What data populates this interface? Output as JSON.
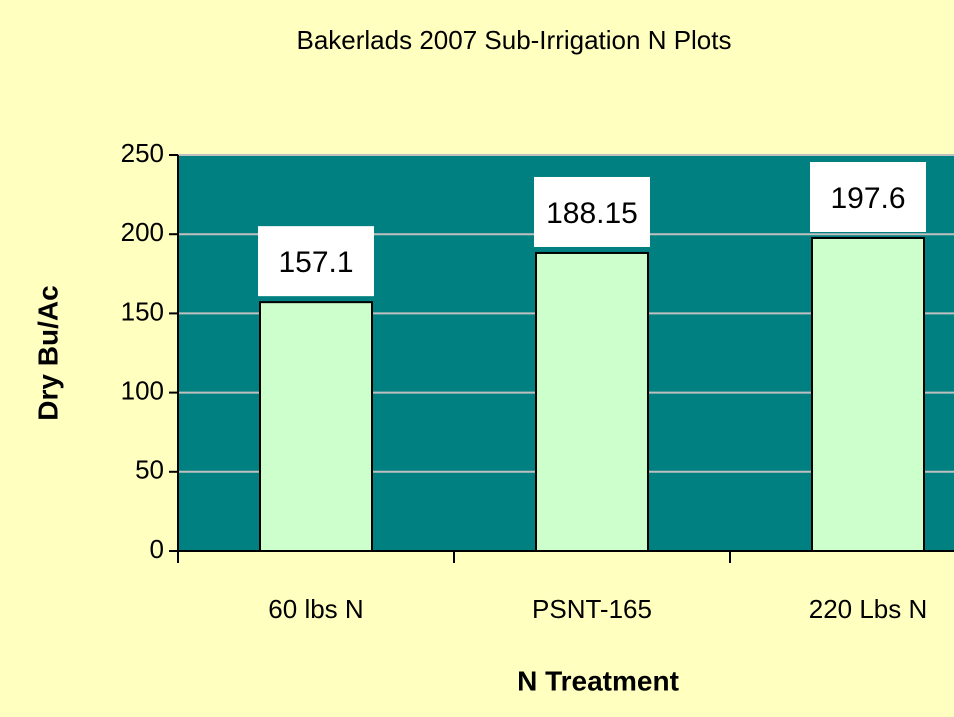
{
  "chart_data": {
    "type": "bar",
    "title": "Bakerlads 2007 Sub-Irrigation N Plots",
    "x_label": "N Treatment",
    "y_label": "Dry Bu/Ac",
    "categories": [
      "60 lbs N",
      "PSNT-165",
      "220 Lbs N"
    ],
    "values": [
      157.1,
      188.15,
      197.6
    ],
    "color": "#ccffcc",
    "plot_color": "#008080",
    "background": "#ffffc0",
    "ylim": [
      0,
      250
    ],
    "yticks": [
      0,
      50,
      100,
      150,
      200,
      250
    ],
    "grid": true
  }
}
